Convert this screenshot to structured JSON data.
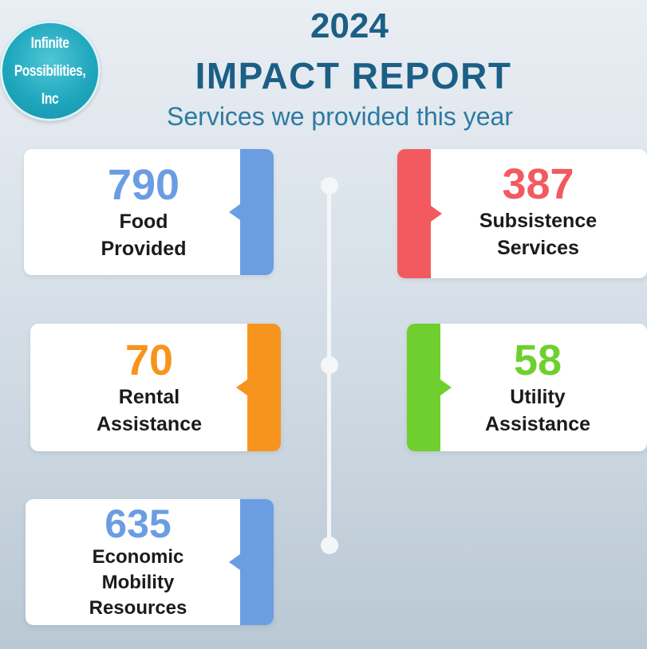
{
  "header": {
    "logo_text": "Infinite\nPossibilities,\nInc",
    "year": "2024",
    "title": "IMPACT REPORT",
    "subtitle": "Services we provided this year"
  },
  "stats": [
    {
      "value": "790",
      "label": "Food\nProvided",
      "color": "#6b9de3"
    },
    {
      "value": "387",
      "label": "Subsistence\nServices",
      "color": "#f25a5f"
    },
    {
      "value": "70",
      "label": "Rental\nAssistance",
      "color": "#f7941d"
    },
    {
      "value": "58",
      "label": "Utility\nAssistance",
      "color": "#6fcf2e"
    },
    {
      "value": "635",
      "label": "Economic\nMobility\nResources",
      "color": "#6b9de3"
    }
  ]
}
